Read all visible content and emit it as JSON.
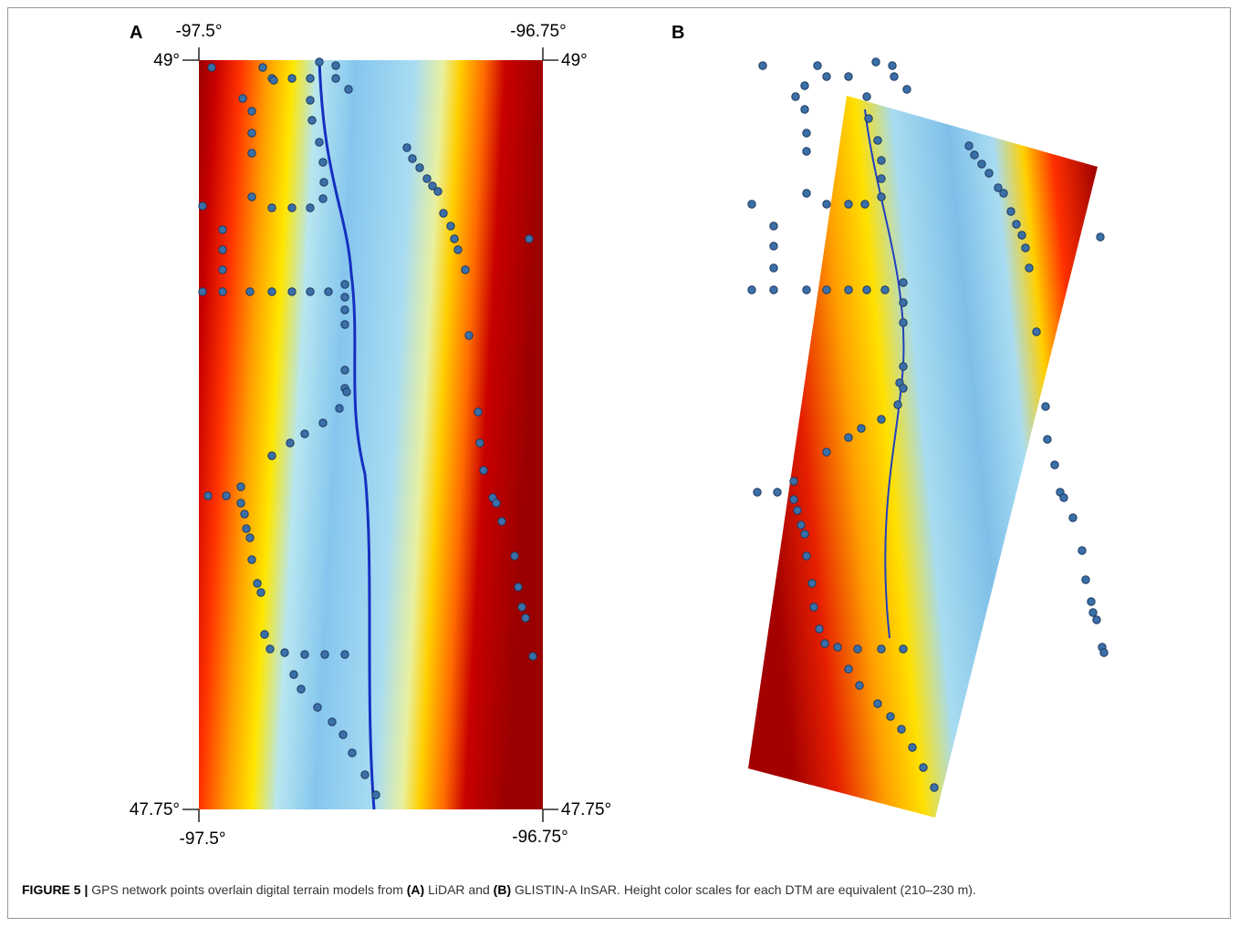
{
  "panels": [
    {
      "label": "A",
      "top_left_lon": "-97.5°",
      "top_right_lon": "-96.75°",
      "top_left_lat": "49°",
      "top_right_lat": "49°",
      "bottom_left_lat": "47.75°",
      "bottom_right_lat": "47.75°",
      "bottom_left_lon": "-97.5°",
      "bottom_right_lon": "-96.75°"
    },
    {
      "label": "B"
    }
  ],
  "caption": {
    "figure": "FIGURE 5 |",
    "text_1": " GPS network points overlain digital terrain models from ",
    "a": "(A)",
    "text_2": " LiDAR and ",
    "b": "(B)",
    "text_3": " GLISTIN-A InSAR. Height color scales for each DTM are equivalent (210–230 m)."
  }
}
